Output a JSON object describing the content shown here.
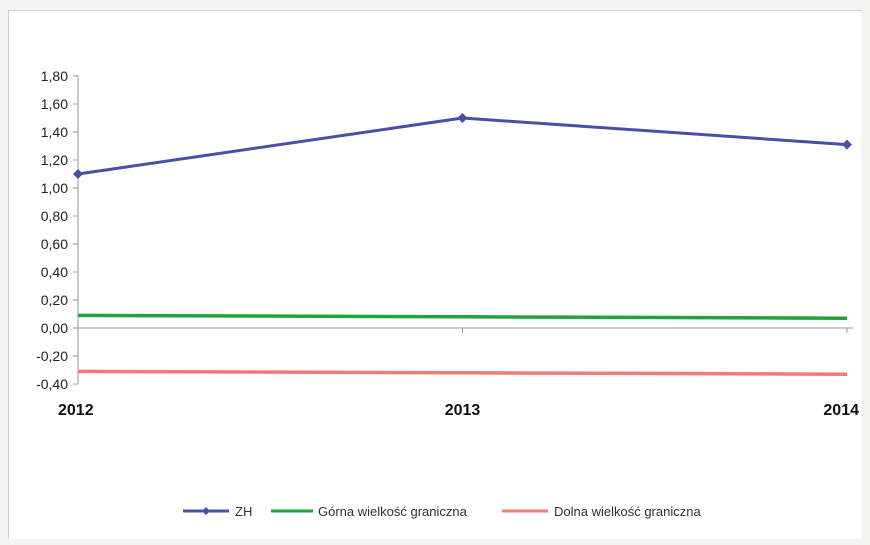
{
  "chart_data": {
    "type": "line",
    "categories": [
      "2012",
      "2013",
      "2014"
    ],
    "series": [
      {
        "name": "ZH",
        "values": [
          1.1,
          1.5,
          1.31
        ],
        "color": "#4a4ea8",
        "marker": "diamond"
      },
      {
        "name": "Górna wielkość graniczna",
        "values": [
          0.09,
          0.08,
          0.07
        ],
        "color": "#1fa33a",
        "marker": "none"
      },
      {
        "name": "Dolna wielkość graniczna",
        "values": [
          -0.31,
          -0.32,
          -0.33
        ],
        "color": "#f07a7a",
        "marker": "none"
      }
    ],
    "y_ticks": [
      "1,80",
      "1,60",
      "1,40",
      "1,20",
      "1,00",
      "0,80",
      "0,60",
      "0,40",
      "0,20",
      "0,00",
      "-0,20",
      "-0,40"
    ],
    "ylim": [
      -0.4,
      1.8
    ],
    "title": "",
    "xlabel": "",
    "ylabel": "",
    "grid": false,
    "legend_position": "bottom"
  }
}
